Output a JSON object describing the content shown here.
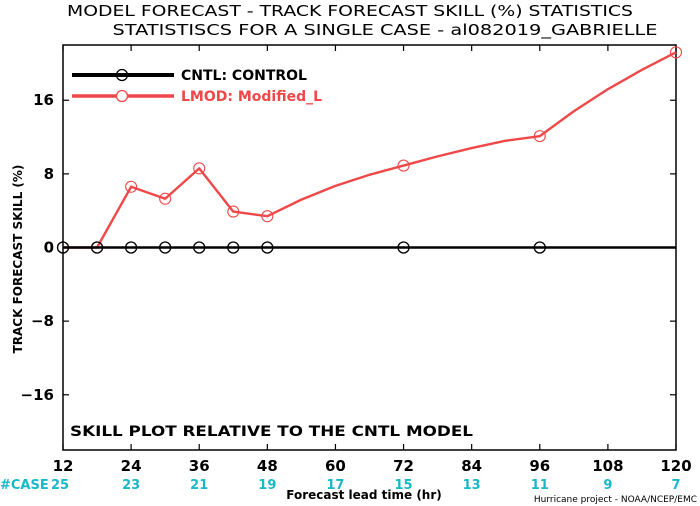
{
  "chart_data": {
    "type": "line",
    "title": "MODEL FORECAST - TRACK FORECAST SKILL (%) STATISTICS",
    "subtitle": "STATISTISCS FOR A SINGLE CASE - al082019_GABRIELLE",
    "xlabel": "Forecast lead time (hr)",
    "ylabel": "TRACK FORECAST SKILL (%)",
    "xlim": [
      12,
      120
    ],
    "ylim": [
      -22,
      22
    ],
    "xticks": [
      12,
      24,
      36,
      48,
      60,
      72,
      84,
      96,
      108,
      120
    ],
    "yticks": [
      -16,
      -8,
      0,
      8,
      16
    ],
    "grid": false,
    "legend_position": "top-left",
    "series": [
      {
        "name": "CNTL: CONTROL",
        "color": "#000000",
        "x": [
          12,
          18,
          24,
          30,
          36,
          42,
          48,
          54,
          60,
          66,
          72,
          78,
          84,
          90,
          96,
          102,
          108,
          114,
          120
        ],
        "y": [
          0,
          0,
          0,
          0,
          0,
          0,
          0,
          0,
          0,
          0,
          0,
          0,
          0,
          0,
          0,
          0,
          0,
          0,
          0
        ],
        "markers_at": [
          12,
          18,
          24,
          30,
          36,
          42,
          48,
          72,
          96
        ]
      },
      {
        "name": "LMOD: Modified_L",
        "color": "#f04848",
        "x": [
          12,
          18,
          24,
          30,
          36,
          42,
          48,
          54,
          60,
          66,
          72,
          78,
          84,
          90,
          96,
          102,
          108,
          114,
          120
        ],
        "y": [
          0,
          0,
          6.6,
          5.3,
          8.6,
          3.9,
          3.4,
          5.2,
          6.7,
          7.9,
          8.9,
          9.9,
          10.8,
          11.6,
          12.1,
          14.8,
          17.2,
          19.3,
          21.2
        ],
        "markers_at": [
          12,
          18,
          24,
          30,
          36,
          42,
          48,
          72,
          96,
          120
        ]
      }
    ],
    "case_counts": {
      "label": "#CASE",
      "x": [
        12,
        24,
        36,
        48,
        60,
        72,
        84,
        96,
        108,
        120
      ],
      "values": [
        "25",
        "23",
        "21",
        "19",
        "17",
        "15",
        "13",
        "11",
        "9",
        "7"
      ],
      "color": "#18b8c8"
    },
    "annotation": "SKILL PLOT RELATIVE TO THE CNTL MODEL",
    "credit": "Hurricane project - NOAA/NCEP/EMC"
  }
}
